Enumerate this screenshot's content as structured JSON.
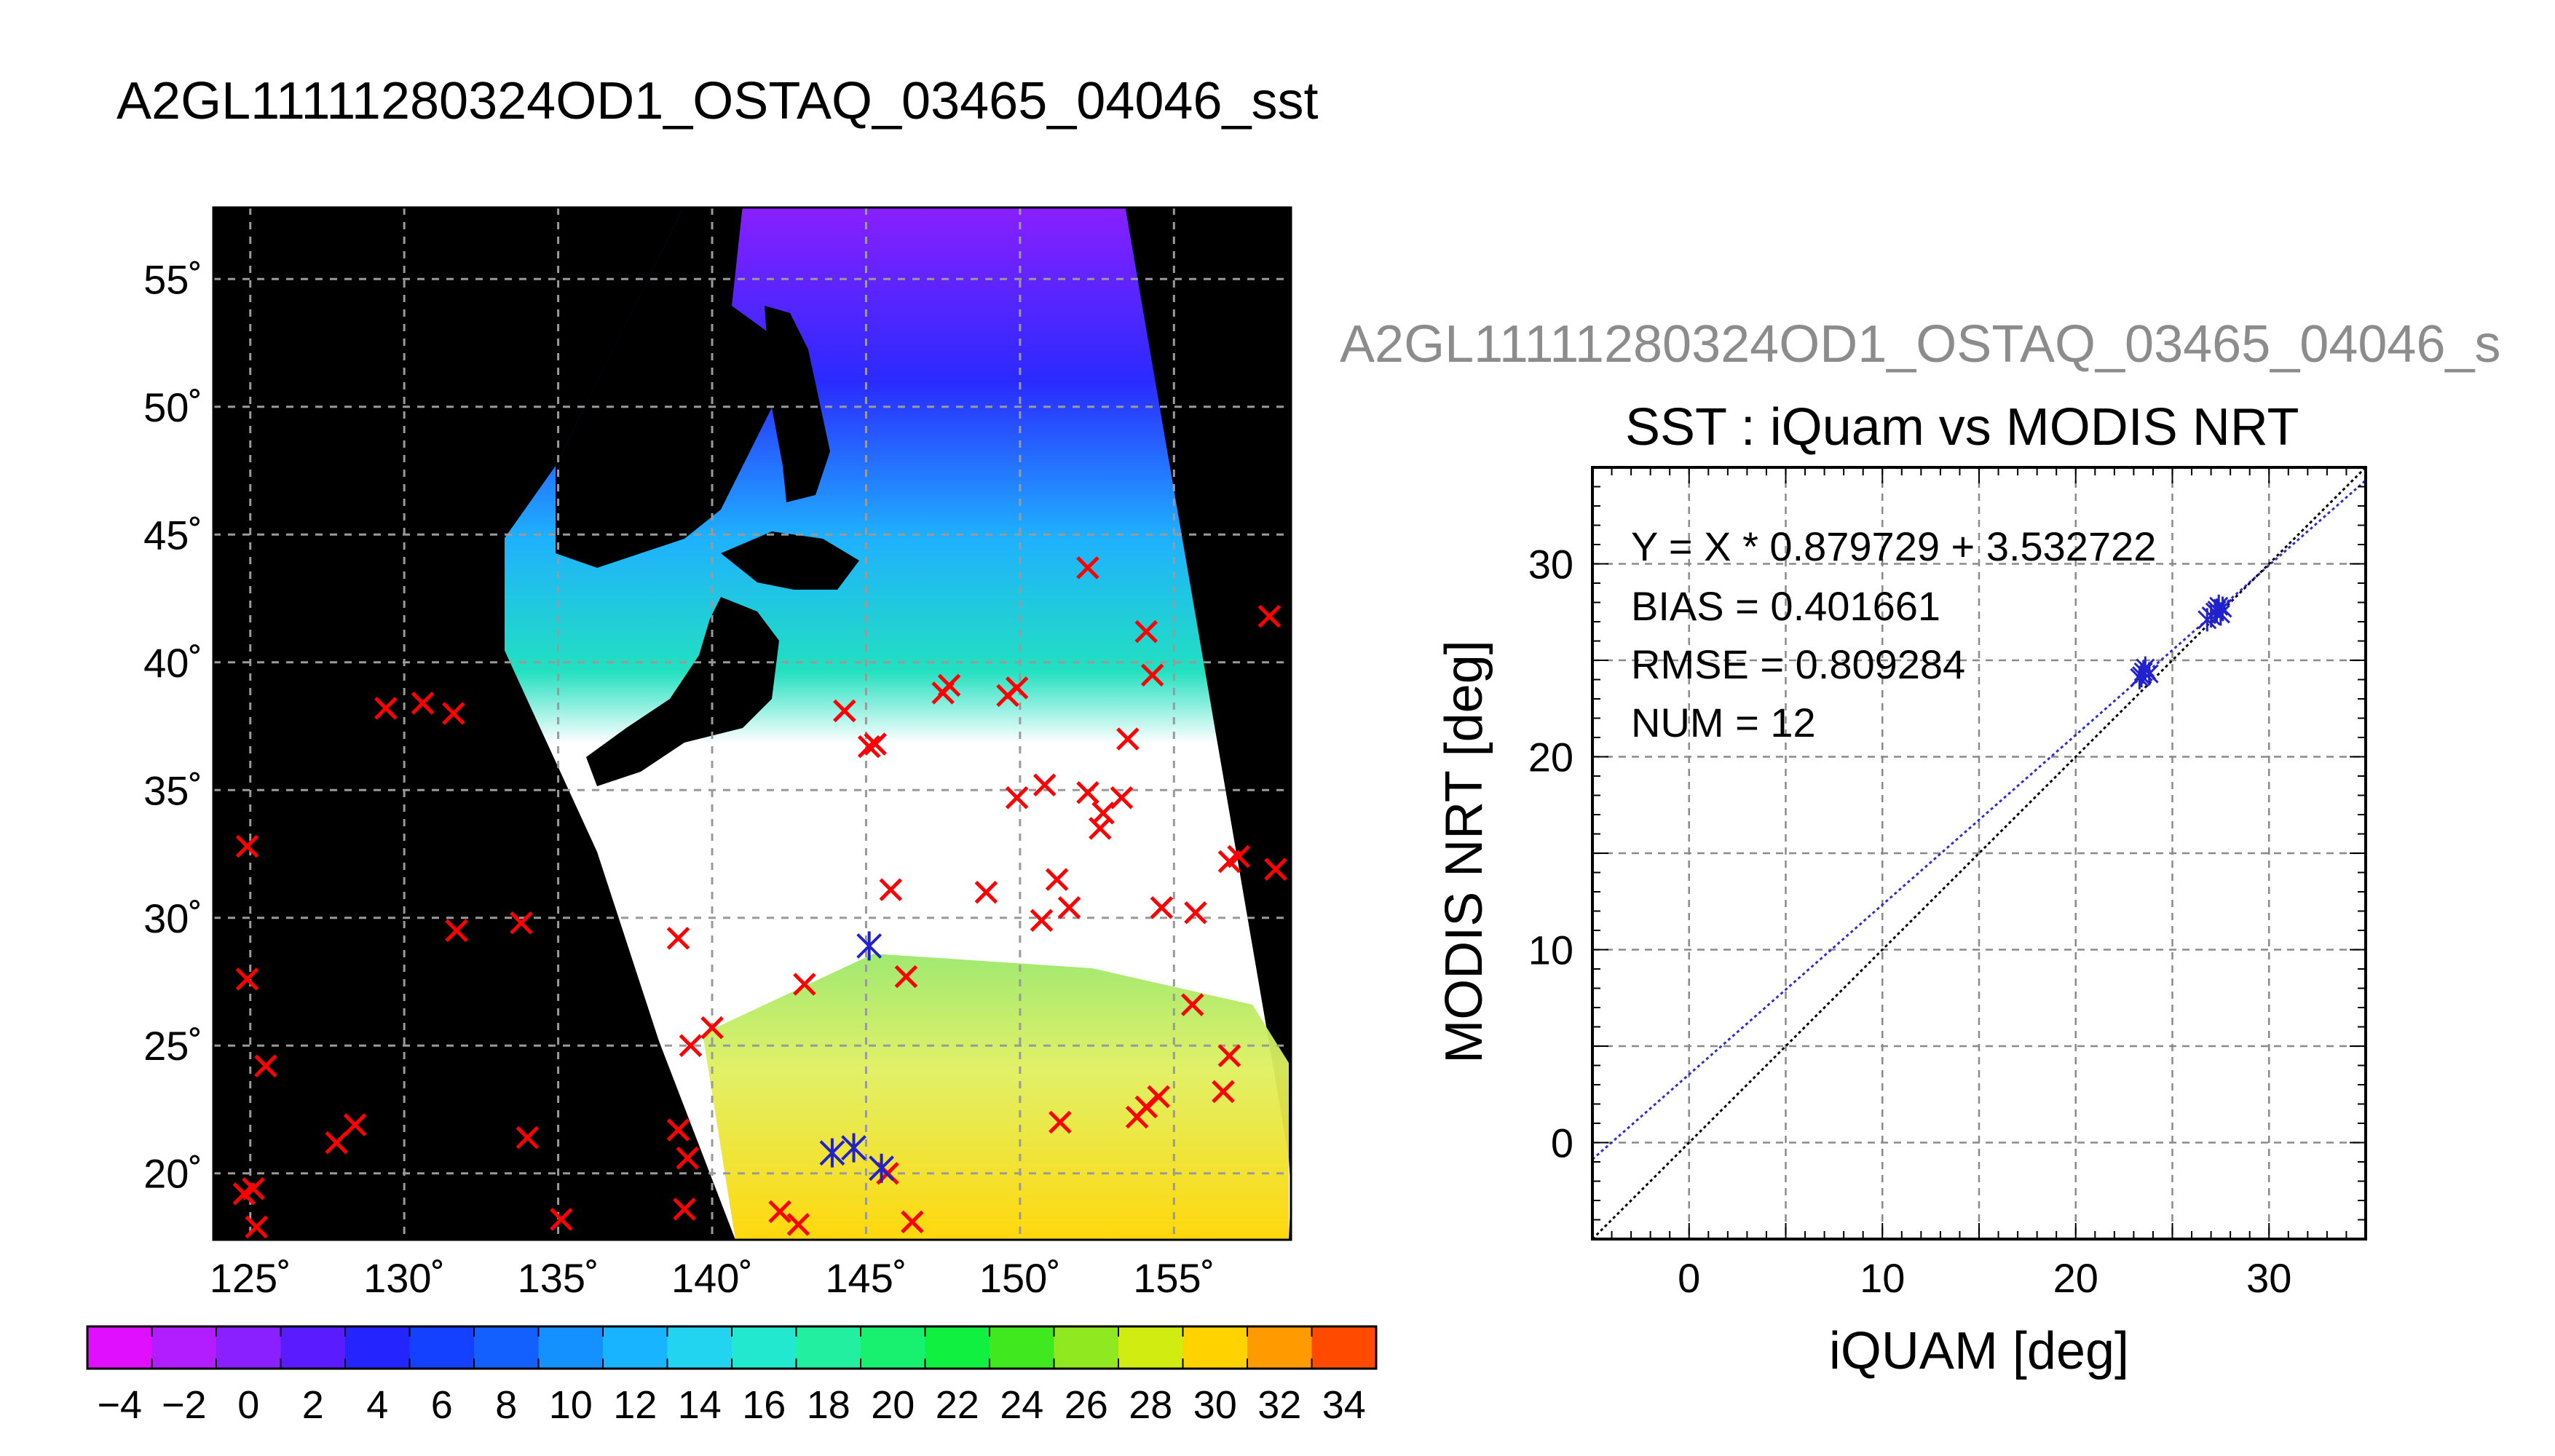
{
  "header": {
    "title": "A2GL11111280324OD1_OSTAQ_03465_04046_sst"
  },
  "map": {
    "lon_ticks": [
      "125˚",
      "130˚",
      "135˚",
      "140˚",
      "145˚",
      "150˚",
      "155˚"
    ],
    "lat_ticks": [
      "55˚",
      "50˚",
      "45˚",
      "40˚",
      "35˚",
      "30˚",
      "25˚",
      "20˚"
    ],
    "colors": {
      "land": "#000000",
      "marker_red": "#ff0000",
      "marker_blue": "#2222cc",
      "grid": "#9a9a9a"
    }
  },
  "colorbar": {
    "tick_labels": [
      "−4",
      "−2",
      "0",
      "2",
      "4",
      "6",
      "8",
      "10",
      "12",
      "14",
      "16",
      "18",
      "20",
      "22",
      "24",
      "26",
      "28",
      "30",
      "32",
      "34"
    ],
    "min": -5,
    "max": 35,
    "step": 2
  },
  "scatter": {
    "supertitle": "A2GL11111280324OD1_OSTAQ_03465_04046_s",
    "stats": {
      "equation": "Y = X * 0.879729 + 3.532722",
      "bias": "BIAS = 0.401661",
      "rmse": "RMSE = 0.809284",
      "num": "NUM = 12"
    }
  },
  "chart_data": {
    "type": "scatter",
    "title": "SST : iQuam vs MODIS NRT",
    "xlabel": "iQUAM [deg]",
    "ylabel": "MODIS NRT [deg]",
    "xlim": [
      -5,
      35
    ],
    "ylim": [
      -5,
      35
    ],
    "x_ticks": [
      "0",
      "10",
      "20",
      "30"
    ],
    "y_ticks": [
      "0",
      "10",
      "20",
      "30"
    ],
    "grid": true,
    "series": [
      {
        "x": [
          23.3,
          23.5,
          23.6,
          23.8,
          26.8,
          27.0,
          27.2,
          27.3,
          27.4,
          27.5,
          27.6,
          23.4
        ],
        "y": [
          24.1,
          24.4,
          24.6,
          24.3,
          27.1,
          27.3,
          27.5,
          27.6,
          27.8,
          27.4,
          27.7,
          24.2
        ],
        "color": "#2222cc"
      }
    ],
    "lines": [
      {
        "slope": 0.879729,
        "intercept": 3.532722,
        "color": "#2b2bd9",
        "style": "dotted"
      },
      {
        "slope": 1,
        "intercept": 0,
        "color": "#000000",
        "style": "dotted"
      }
    ]
  }
}
